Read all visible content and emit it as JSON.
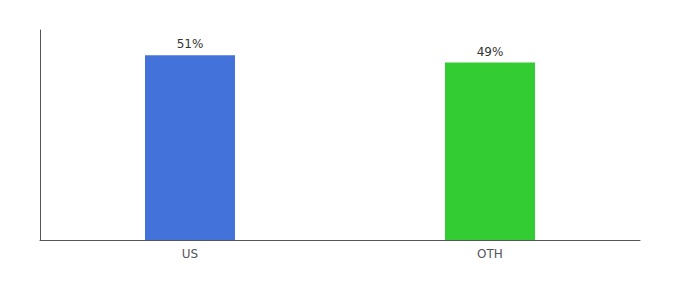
{
  "chart_data": {
    "type": "bar",
    "categories": [
      "US",
      "OTH"
    ],
    "values": [
      51,
      49
    ],
    "value_labels": [
      "51%",
      "49%"
    ],
    "colors": [
      "#4472db",
      "#33cc33"
    ],
    "ylim": [
      0,
      58
    ],
    "tick_labels": "x",
    "data_labels": true,
    "grid": false
  }
}
